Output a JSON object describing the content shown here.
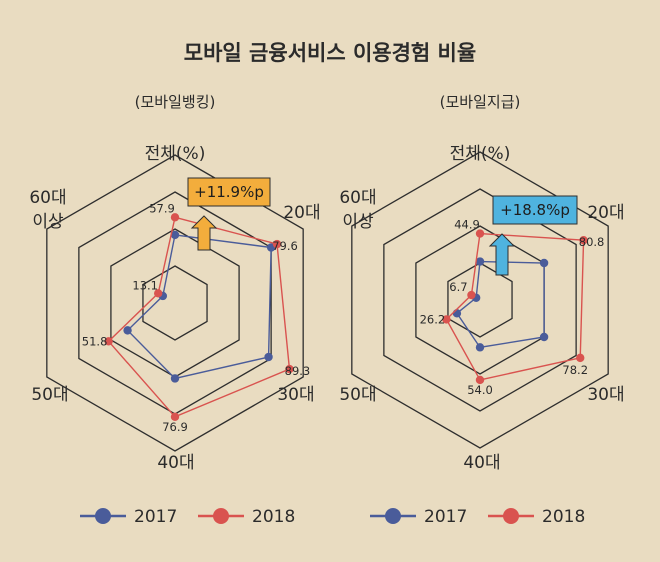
{
  "title": "모바일 금융서비스 이용경험 비율",
  "legend": [
    {
      "label": "2017",
      "color": "#4a5c9a"
    },
    {
      "label": "2018",
      "color": "#d9534f"
    }
  ],
  "chart_data": [
    {
      "type": "radar",
      "subtitle": "(모바일뱅킹)",
      "axes": [
        "전체(%)",
        "20대",
        "30대",
        "40대",
        "50대",
        "60대 이상"
      ],
      "rmax": 100,
      "series": [
        {
          "name": "2017",
          "values": [
            46.0,
            75.0,
            73.0,
            51.0,
            37.0,
            9.5
          ]
        },
        {
          "name": "2018",
          "values": [
            57.9,
            79.6,
            89.3,
            76.9,
            51.8,
            13.1
          ]
        }
      ],
      "value_labels": [
        "57.9",
        "79.6",
        "89.3",
        "76.9",
        "51.8",
        "13.1"
      ],
      "callout": {
        "text": "+11.9%p",
        "color": "#f3ad3c"
      }
    },
    {
      "type": "radar",
      "subtitle": "(모바일지급)",
      "axes": [
        "전체(%)",
        "20대",
        "30대",
        "40대",
        "50대",
        "60대 이상"
      ],
      "rmax": 100,
      "series": [
        {
          "name": "2017",
          "values": [
            26.0,
            50.0,
            50.0,
            32.0,
            18.0,
            3.0
          ]
        },
        {
          "name": "2018",
          "values": [
            44.9,
            80.8,
            78.2,
            54.0,
            26.2,
            6.7
          ]
        }
      ],
      "value_labels": [
        "44.9",
        "80.8",
        "78.2",
        "54.0",
        "26.2",
        "6.7"
      ],
      "callout": {
        "text": "+18.8%p",
        "color": "#4fb3df"
      }
    }
  ]
}
